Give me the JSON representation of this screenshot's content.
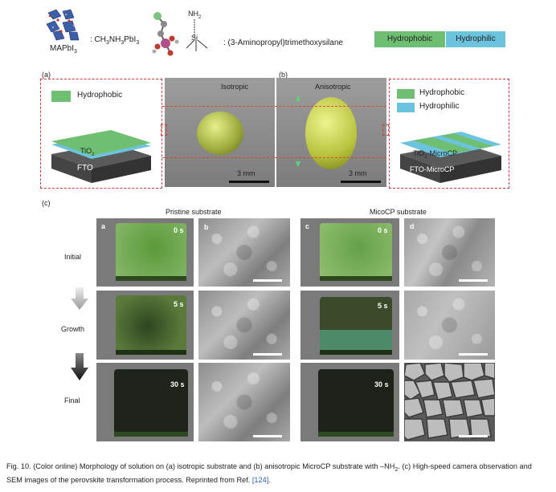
{
  "legend": {
    "mapbi3_label": "MAPbI",
    "mapbi3_sub": "3",
    "formula_colon": ": CH",
    "formula_rest": "NH",
    "formula_tail": "PbI",
    "nh2": "NH",
    "nh2_sub": "2",
    "si": "Si",
    "aptms": ": (3-Aminopropyl)trimethoxysilane",
    "hydrophobic": "Hydrophobic",
    "hydrophilic": "Hydrophilic",
    "colors": {
      "hydrophobic": "#6fbf73",
      "hydrophilic": "#6cc3dd"
    }
  },
  "panel_a": {
    "letter": "(a)",
    "box_label": "Hydrophobic",
    "tio2": "TiO",
    "tio2_sub": "2",
    "fto": "FTO",
    "title": "Isotropic",
    "scale": "3 mm"
  },
  "panel_b": {
    "letter": "(b)",
    "title": "Anisotropic",
    "scale": "3 mm",
    "legend_hydrophobic": "Hydrophobic",
    "legend_hydrophilic": "Hydrophilic",
    "tio2": "TiO",
    "tio2_sub": "2",
    "tio2_rest": "-MicroCP",
    "fto": "FTO-MicroCP"
  },
  "panel_c": {
    "letter": "(c)",
    "pristine": "Pristine substrate",
    "microcp": "MicoCP substrate",
    "rows": [
      "Initial",
      "Growth",
      "Final"
    ],
    "times": [
      "0 s",
      "5 s",
      "30 s"
    ],
    "sub_letters": [
      "a",
      "b",
      "c",
      "d"
    ]
  },
  "caption": {
    "text1": "Fig. 10. (Color online) Morphology of solution on (a) isotropic substrate and (b) anisotropic MicroCP substrate with –NH",
    "sub": "2",
    "text2": ". (c) High-speed camera observation and SEM images of the perovskite transformation process. Reprinted from Ref. ",
    "ref": "[124]",
    "end": "."
  }
}
